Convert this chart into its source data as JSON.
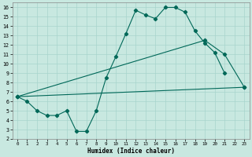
{
  "xlabel": "Humidex (Indice chaleur)",
  "bg_color": "#c8e8e0",
  "grid_color": "#a8d4cc",
  "line_color": "#006858",
  "xlim": [
    -0.5,
    23.5
  ],
  "ylim": [
    2,
    16.5
  ],
  "xticks": [
    0,
    1,
    2,
    3,
    4,
    5,
    6,
    7,
    8,
    9,
    10,
    11,
    12,
    13,
    14,
    15,
    16,
    17,
    18,
    19,
    20,
    21,
    22,
    23
  ],
  "yticks": [
    2,
    3,
    4,
    5,
    6,
    7,
    8,
    9,
    10,
    11,
    12,
    13,
    14,
    15,
    16
  ],
  "line1_x": [
    0,
    1,
    2,
    3,
    4,
    5,
    6,
    7,
    8,
    9,
    10,
    11,
    12,
    13,
    14,
    15,
    16,
    17,
    18,
    19,
    20,
    21
  ],
  "line1_y": [
    6.5,
    6.0,
    5.0,
    4.5,
    4.5,
    5.0,
    2.8,
    2.8,
    5.0,
    8.5,
    10.8,
    13.2,
    15.7,
    15.2,
    14.8,
    16.0,
    16.0,
    15.5,
    13.5,
    12.2,
    11.2,
    9.0
  ],
  "line2_x": [
    0,
    23
  ],
  "line2_y": [
    6.5,
    7.5
  ],
  "line3_x": [
    0,
    19,
    21,
    23
  ],
  "line3_y": [
    6.5,
    12.5,
    11.0,
    7.5
  ]
}
